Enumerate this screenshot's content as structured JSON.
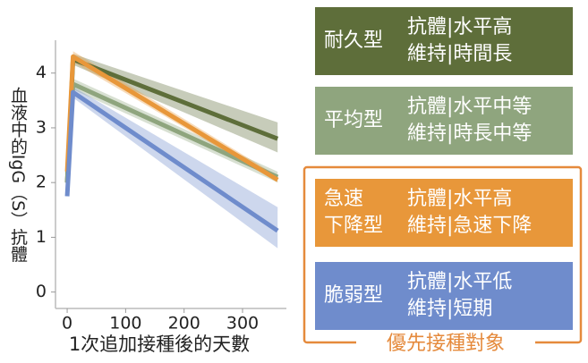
{
  "chart_data": {
    "type": "line",
    "x_label": "1次追加接種後的天數",
    "y_label": "血液中的IgG（S）抗體",
    "xlim": [
      -20,
      375
    ],
    "xticks": [
      0,
      100,
      200,
      300
    ],
    "ylim": [
      -0.3,
      4.6
    ],
    "yticks": [
      0,
      1,
      2,
      3,
      4
    ],
    "x": [
      0,
      10,
      360
    ],
    "series": [
      {
        "color": "#5e6e3a",
        "values": [
          2.0,
          4.25,
          2.8
        ],
        "lower": [
          null,
          4.15,
          2.55
        ],
        "upper": [
          null,
          4.35,
          3.1
        ]
      },
      {
        "color": "#8fa57e",
        "values": [
          2.0,
          3.8,
          2.1
        ],
        "lower": [
          null,
          3.7,
          2.0
        ],
        "upper": [
          null,
          3.9,
          2.2
        ]
      },
      {
        "color": "#e8973a",
        "values": [
          2.2,
          4.3,
          2.05
        ],
        "lower": [
          null,
          4.2,
          2.0
        ],
        "upper": [
          null,
          4.4,
          2.12
        ]
      },
      {
        "color": "#6f8ccc",
        "values": [
          1.75,
          3.65,
          1.12
        ],
        "lower": [
          null,
          3.55,
          0.8
        ],
        "upper": [
          null,
          3.75,
          1.55
        ]
      }
    ],
    "legend": [
      {
        "label": [
          "耐久型"
        ],
        "desc": [
          "抗體|水平高",
          "維持|時間長"
        ]
      },
      {
        "label": [
          "平均型"
        ],
        "desc": [
          "抗體|水平中等",
          "維持|時長中等"
        ]
      },
      {
        "label": [
          "急速",
          "下降型"
        ],
        "desc": [
          "抗體|水平高",
          "維持|急速下降"
        ]
      },
      {
        "label": [
          "脆弱型"
        ],
        "desc": [
          "抗體|水平低",
          "維持|短期"
        ]
      }
    ],
    "priority_label": "優先接種對象",
    "priority_color": "#e58a3c"
  }
}
